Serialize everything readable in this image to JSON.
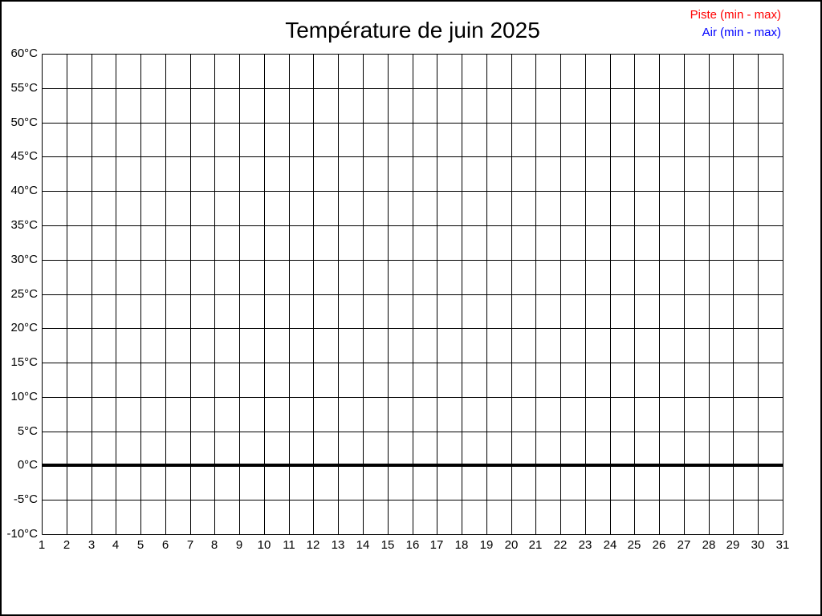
{
  "chart": {
    "title": "Température de juin 2025",
    "legend": [
      {
        "label": "Piste (min - max)",
        "color": "#ff0000"
      },
      {
        "label": "Air (min - max)",
        "color": "#0000ff"
      }
    ]
  },
  "chart_data": {
    "type": "line",
    "title": "Température de juin 2025",
    "xlabel": "",
    "ylabel": "",
    "xlim": [
      1,
      31
    ],
    "ylim": [
      -10,
      60
    ],
    "grid": true,
    "grid_color": "#000000",
    "background_color": "#ffffff",
    "legend_position": "top-right",
    "x_tick_values": [
      1,
      2,
      3,
      4,
      5,
      6,
      7,
      8,
      9,
      10,
      11,
      12,
      13,
      14,
      15,
      16,
      17,
      18,
      19,
      20,
      21,
      22,
      23,
      24,
      25,
      26,
      27,
      28,
      29,
      30,
      31
    ],
    "x_tick_labels": [
      "1",
      "2",
      "3",
      "4",
      "5",
      "6",
      "7",
      "8",
      "9",
      "10",
      "11",
      "12",
      "13",
      "14",
      "15",
      "16",
      "17",
      "18",
      "19",
      "20",
      "21",
      "22",
      "23",
      "24",
      "25",
      "26",
      "27",
      "28",
      "29",
      "30",
      "31"
    ],
    "y_tick_values": [
      60,
      55,
      50,
      45,
      40,
      35,
      30,
      25,
      20,
      15,
      10,
      5,
      0,
      -5,
      -10
    ],
    "y_tick_labels": [
      "60°C",
      "55°C",
      "50°C",
      "45°C",
      "40°C",
      "35°C",
      "30°C",
      "25°C",
      "20°C",
      "15°C",
      "10°C",
      "5°C",
      "0°C",
      "-5°C",
      "-10°C"
    ],
    "zero_line": {
      "value": 0,
      "color": "#000000",
      "width": 4
    },
    "series": [
      {
        "name": "Piste (min - max)",
        "color": "#ff0000",
        "x": [],
        "values": []
      },
      {
        "name": "Air (min - max)",
        "color": "#0000ff",
        "x": [],
        "values": []
      }
    ]
  }
}
